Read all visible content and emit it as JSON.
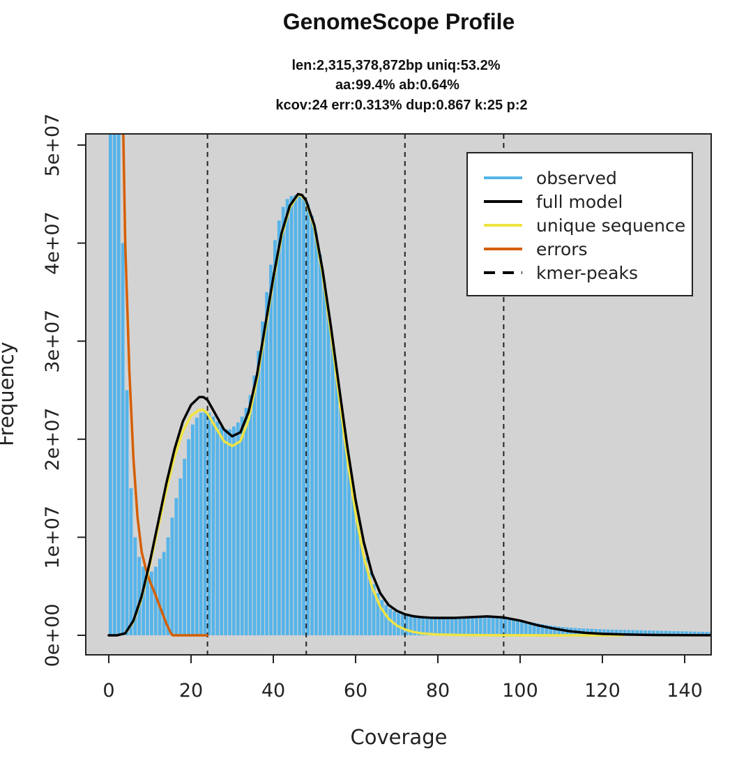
{
  "chart_data": {
    "type": "bar",
    "title": "GenomeScope Profile",
    "subtitle_lines": [
      "len:2,315,378,872bp uniq:53.2%",
      "aa:99.4% ab:0.64%",
      "kcov:24 err:0.313%  dup:0.867  k:25 p:2"
    ],
    "xlabel": "Coverage",
    "ylabel": "Frequency",
    "xlim": [
      -5,
      147
    ],
    "ylim": [
      -2000000,
      51200000
    ],
    "xticks": [
      0,
      20,
      40,
      60,
      80,
      100,
      120,
      140
    ],
    "xtick_labels": [
      "0",
      "20",
      "40",
      "60",
      "80",
      "100",
      "120",
      "140"
    ],
    "yticks": [
      0,
      10000000,
      20000000,
      30000000,
      40000000,
      50000000
    ],
    "ytick_labels": [
      "0e+00",
      "1e+07",
      "2e+07",
      "3e+07",
      "4e+07",
      "5e+07"
    ],
    "background_color": "#d3d3d3",
    "kmer_peaks": [
      24,
      48,
      72,
      96
    ],
    "legend": {
      "position": "top-right",
      "entries": [
        {
          "label": "observed",
          "color": "#56b4e9",
          "style": "solid"
        },
        {
          "label": "full model",
          "color": "#000000",
          "style": "solid"
        },
        {
          "label": "unique sequence",
          "color": "#f0e442",
          "style": "solid"
        },
        {
          "label": "errors",
          "color": "#d55e00",
          "style": "solid"
        },
        {
          "label": "kmer-peaks",
          "color": "#000000",
          "style": "dashed"
        }
      ]
    },
    "series": [
      {
        "name": "observed",
        "kind": "histogram",
        "color": "#56b4e9",
        "points": [
          [
            0,
            52000000
          ],
          [
            1,
            52000000
          ],
          [
            2,
            52000000
          ],
          [
            3,
            40000000
          ],
          [
            4,
            25000000
          ],
          [
            5,
            15000000
          ],
          [
            6,
            10000000
          ],
          [
            7,
            8000000
          ],
          [
            8,
            7000000
          ],
          [
            9,
            6600000
          ],
          [
            10,
            6500000
          ],
          [
            11,
            7000000
          ],
          [
            12,
            7800000
          ],
          [
            13,
            8500000
          ],
          [
            14,
            10000000
          ],
          [
            15,
            12000000
          ],
          [
            16,
            14000000
          ],
          [
            17,
            16000000
          ],
          [
            18,
            18000000
          ],
          [
            19,
            20000000
          ],
          [
            20,
            21500000
          ],
          [
            21,
            22200000
          ],
          [
            22,
            22700000
          ],
          [
            23,
            22800000
          ],
          [
            24,
            22700000
          ],
          [
            25,
            22300000
          ],
          [
            26,
            21800000
          ],
          [
            27,
            21300000
          ],
          [
            28,
            21000000
          ],
          [
            29,
            21000000
          ],
          [
            30,
            21300000
          ],
          [
            31,
            21700000
          ],
          [
            32,
            22300000
          ],
          [
            33,
            23200000
          ],
          [
            34,
            24500000
          ],
          [
            35,
            26500000
          ],
          [
            36,
            29000000
          ],
          [
            37,
            32000000
          ],
          [
            38,
            35000000
          ],
          [
            39,
            37800000
          ],
          [
            40,
            40300000
          ],
          [
            41,
            42300000
          ],
          [
            42,
            43700000
          ],
          [
            43,
            44500000
          ],
          [
            44,
            44800000
          ],
          [
            45,
            44900000
          ],
          [
            46,
            44900000
          ],
          [
            47,
            44700000
          ],
          [
            48,
            44000000
          ],
          [
            49,
            42800000
          ],
          [
            50,
            41000000
          ],
          [
            51,
            38800000
          ],
          [
            52,
            36000000
          ],
          [
            53,
            33000000
          ],
          [
            54,
            29800000
          ],
          [
            55,
            26500000
          ],
          [
            56,
            23200000
          ],
          [
            57,
            20000000
          ],
          [
            58,
            17000000
          ],
          [
            59,
            14200000
          ],
          [
            60,
            11800000
          ],
          [
            61,
            9700000
          ],
          [
            62,
            7900000
          ],
          [
            63,
            6400000
          ],
          [
            64,
            5200000
          ],
          [
            65,
            4300000
          ],
          [
            66,
            3600000
          ],
          [
            67,
            3100000
          ],
          [
            68,
            2700000
          ],
          [
            69,
            2450000
          ],
          [
            70,
            2250000
          ],
          [
            71,
            2100000
          ],
          [
            72,
            2000000
          ],
          [
            73,
            1900000
          ],
          [
            74,
            1850000
          ],
          [
            75,
            1800000
          ],
          [
            76,
            1750000
          ],
          [
            77,
            1720000
          ],
          [
            78,
            1700000
          ],
          [
            79,
            1680000
          ],
          [
            80,
            1670000
          ],
          [
            81,
            1660000
          ],
          [
            82,
            1660000
          ],
          [
            83,
            1660000
          ],
          [
            84,
            1670000
          ],
          [
            85,
            1680000
          ],
          [
            86,
            1700000
          ],
          [
            87,
            1720000
          ],
          [
            88,
            1740000
          ],
          [
            89,
            1760000
          ],
          [
            90,
            1780000
          ],
          [
            91,
            1790000
          ],
          [
            92,
            1800000
          ],
          [
            93,
            1790000
          ],
          [
            94,
            1780000
          ],
          [
            95,
            1760000
          ],
          [
            96,
            1730000
          ],
          [
            97,
            1690000
          ],
          [
            98,
            1640000
          ],
          [
            99,
            1580000
          ],
          [
            100,
            1510000
          ],
          [
            101,
            1440000
          ],
          [
            102,
            1360000
          ],
          [
            103,
            1280000
          ],
          [
            104,
            1200000
          ],
          [
            105,
            1120000
          ],
          [
            106,
            1050000
          ],
          [
            107,
            990000
          ],
          [
            108,
            940000
          ],
          [
            109,
            890000
          ],
          [
            110,
            850000
          ],
          [
            111,
            810000
          ],
          [
            112,
            780000
          ],
          [
            113,
            750000
          ],
          [
            114,
            720000
          ],
          [
            115,
            700000
          ],
          [
            116,
            680000
          ],
          [
            117,
            660000
          ],
          [
            118,
            640000
          ],
          [
            119,
            620000
          ],
          [
            120,
            600000
          ],
          [
            121,
            590000
          ],
          [
            122,
            580000
          ],
          [
            123,
            570000
          ],
          [
            124,
            560000
          ],
          [
            125,
            550000
          ],
          [
            126,
            540000
          ],
          [
            127,
            530000
          ],
          [
            128,
            520000
          ],
          [
            129,
            510000
          ],
          [
            130,
            500000
          ],
          [
            131,
            490000
          ],
          [
            132,
            480000
          ],
          [
            133,
            470000
          ],
          [
            134,
            460000
          ],
          [
            135,
            450000
          ],
          [
            136,
            440000
          ],
          [
            137,
            430000
          ],
          [
            138,
            420000
          ],
          [
            139,
            410000
          ],
          [
            140,
            400000
          ],
          [
            141,
            390000
          ],
          [
            142,
            380000
          ],
          [
            143,
            370000
          ],
          [
            144,
            360000
          ],
          [
            145,
            350000
          ],
          [
            146,
            340000
          ]
        ]
      },
      {
        "name": "full model",
        "kind": "line",
        "color": "#000000",
        "points": [
          [
            0,
            0
          ],
          [
            2,
            0
          ],
          [
            4,
            200000
          ],
          [
            6,
            1500000
          ],
          [
            8,
            4000000
          ],
          [
            10,
            7500000
          ],
          [
            12,
            11500000
          ],
          [
            14,
            15500000
          ],
          [
            16,
            19000000
          ],
          [
            18,
            21800000
          ],
          [
            20,
            23500000
          ],
          [
            22,
            24300000
          ],
          [
            23,
            24300000
          ],
          [
            24,
            24000000
          ],
          [
            26,
            22500000
          ],
          [
            28,
            21000000
          ],
          [
            30,
            20300000
          ],
          [
            32,
            20700000
          ],
          [
            34,
            22800000
          ],
          [
            36,
            26500000
          ],
          [
            38,
            31500000
          ],
          [
            40,
            36500000
          ],
          [
            42,
            41000000
          ],
          [
            44,
            43800000
          ],
          [
            46,
            45000000
          ],
          [
            47,
            44900000
          ],
          [
            48,
            44300000
          ],
          [
            50,
            41800000
          ],
          [
            52,
            37200000
          ],
          [
            54,
            31500000
          ],
          [
            56,
            25300000
          ],
          [
            58,
            19200000
          ],
          [
            60,
            13800000
          ],
          [
            62,
            9500000
          ],
          [
            64,
            6300000
          ],
          [
            66,
            4300000
          ],
          [
            68,
            3100000
          ],
          [
            70,
            2500000
          ],
          [
            72,
            2150000
          ],
          [
            74,
            1950000
          ],
          [
            76,
            1850000
          ],
          [
            78,
            1800000
          ],
          [
            80,
            1780000
          ],
          [
            84,
            1780000
          ],
          [
            88,
            1850000
          ],
          [
            92,
            1930000
          ],
          [
            96,
            1820000
          ],
          [
            100,
            1500000
          ],
          [
            104,
            1050000
          ],
          [
            108,
            700000
          ],
          [
            112,
            420000
          ],
          [
            116,
            250000
          ],
          [
            120,
            150000
          ],
          [
            126,
            80000
          ],
          [
            132,
            40000
          ],
          [
            140,
            15000
          ],
          [
            147,
            5000
          ]
        ]
      },
      {
        "name": "unique sequence",
        "kind": "line",
        "color": "#f0e442",
        "points": [
          [
            4,
            200000
          ],
          [
            6,
            1400000
          ],
          [
            8,
            3800000
          ],
          [
            10,
            7200000
          ],
          [
            12,
            11000000
          ],
          [
            14,
            14800000
          ],
          [
            16,
            18200000
          ],
          [
            18,
            20800000
          ],
          [
            20,
            22400000
          ],
          [
            22,
            23000000
          ],
          [
            23,
            23000000
          ],
          [
            24,
            22600000
          ],
          [
            26,
            21200000
          ],
          [
            28,
            19800000
          ],
          [
            30,
            19300000
          ],
          [
            32,
            19800000
          ],
          [
            34,
            22000000
          ],
          [
            36,
            26000000
          ],
          [
            38,
            31000000
          ],
          [
            40,
            36200000
          ],
          [
            42,
            40700000
          ],
          [
            44,
            43600000
          ],
          [
            46,
            44900000
          ],
          [
            47,
            44800000
          ],
          [
            48,
            44200000
          ],
          [
            50,
            41500000
          ],
          [
            52,
            36800000
          ],
          [
            54,
            30800000
          ],
          [
            56,
            24300000
          ],
          [
            58,
            18000000
          ],
          [
            60,
            12400000
          ],
          [
            62,
            8000000
          ],
          [
            64,
            4900000
          ],
          [
            66,
            2900000
          ],
          [
            68,
            1700000
          ],
          [
            70,
            1000000
          ],
          [
            72,
            600000
          ],
          [
            74,
            350000
          ],
          [
            76,
            200000
          ],
          [
            80,
            80000
          ],
          [
            86,
            30000
          ],
          [
            95,
            10000
          ],
          [
            110,
            3000
          ],
          [
            125,
            0
          ]
        ]
      },
      {
        "name": "errors",
        "kind": "line",
        "color": "#d55e00",
        "points": [
          [
            3.5,
            52000000
          ],
          [
            4,
            40000000
          ],
          [
            5,
            27000000
          ],
          [
            6,
            18000000
          ],
          [
            7,
            12000000
          ],
          [
            8,
            8500000
          ],
          [
            9,
            6800000
          ],
          [
            10,
            5500000
          ],
          [
            11,
            4500000
          ],
          [
            12,
            3400000
          ],
          [
            13,
            2300000
          ],
          [
            14,
            1200000
          ],
          [
            15,
            300000
          ],
          [
            15.5,
            0
          ],
          [
            24,
            0
          ]
        ]
      }
    ]
  }
}
